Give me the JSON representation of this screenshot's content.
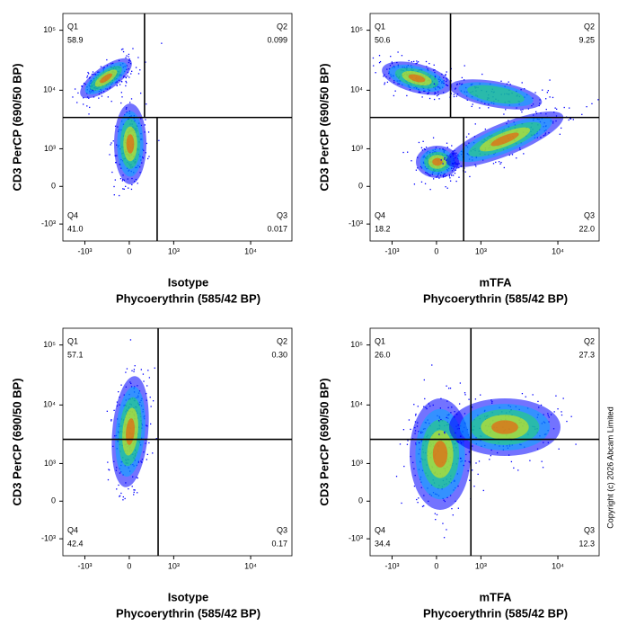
{
  "panels": [
    {
      "x_label_top": "Isotype",
      "x_label": "Phycoerythrin (585/42 BP)",
      "y_label": "CD3 PerCP (690/50 BP)",
      "xlim": [
        -2000,
        33000
      ],
      "ylim": [
        -2000,
        190000
      ],
      "xticks": [
        {
          "value": -1000,
          "label": "-10³"
        },
        0,
        {
          "value": 1000,
          "label": "10³"
        },
        {
          "value": 10000,
          "label": "10⁴"
        }
      ],
      "yticks": [
        {
          "value": -1000,
          "label": "-10³"
        },
        0,
        {
          "value": 1000,
          "label": "10³"
        },
        {
          "value": 10000,
          "label": "10⁴"
        },
        {
          "value": 100000,
          "label": "10⁵"
        }
      ],
      "gates": {
        "x_upper": 273,
        "x_lower": 537,
        "y": 3500
      },
      "quadrants": [
        {
          "name": "Q1",
          "value": 58.9
        },
        {
          "name": "Q2",
          "value": 0.099
        },
        {
          "name": "Q3",
          "value": 0.017
        },
        {
          "name": "Q4",
          "value": 41.0,
          "label": "41.0"
        }
      ]
    },
    {
      "x_label_top": "mTFA",
      "x_label": "Phycoerythrin (585/42 BP)",
      "y_label": "CD3 PerCP (690/50 BP)",
      "xlim": [
        -2000,
        33000
      ],
      "ylim": [
        -2000,
        190000
      ],
      "xticks": [
        {
          "value": -1000,
          "label": "-10³"
        },
        0,
        {
          "value": 1000,
          "label": "10³"
        },
        {
          "value": 10000,
          "label": "10⁴"
        }
      ],
      "yticks": [
        {
          "value": -1000,
          "label": "-10³"
        },
        0,
        {
          "value": 1000,
          "label": "10³"
        },
        {
          "value": 10000,
          "label": "10⁴"
        },
        {
          "value": 100000,
          "label": "10⁵"
        }
      ],
      "gates": {
        "x_upper": 250,
        "x_lower": 520,
        "y": 3500
      },
      "quadrants": [
        {
          "name": "Q1",
          "value": 50.6
        },
        {
          "name": "Q2",
          "value": 9.25
        },
        {
          "name": "Q3",
          "value": 22.0,
          "label": "22.0"
        },
        {
          "name": "Q4",
          "value": 18.2
        }
      ]
    },
    {
      "x_label_top": "Isotype",
      "x_label": "Phycoerythrin (585/42 BP)",
      "y_label": "CD3 PerCP (690/50 BP)",
      "xlim": [
        -2000,
        33000
      ],
      "ylim": [
        -2000,
        190000
      ],
      "xticks": [
        {
          "value": -1000,
          "label": "-10³"
        },
        0,
        {
          "value": 1000,
          "label": "10³"
        },
        {
          "value": 10000,
          "label": "10⁴"
        }
      ],
      "yticks": [
        {
          "value": -1000,
          "label": "-10³"
        },
        0,
        {
          "value": 1000,
          "label": "10³"
        },
        {
          "value": 10000,
          "label": "10⁴"
        },
        {
          "value": 100000,
          "label": "10⁵"
        }
      ],
      "gates": {
        "x": 560,
        "y": 2650
      },
      "quadrants": [
        {
          "name": "Q1",
          "value": 57.1
        },
        {
          "name": "Q2",
          "value": 0.3,
          "label": "0.30"
        },
        {
          "name": "Q3",
          "value": 0.17
        },
        {
          "name": "Q4",
          "value": 42.4
        }
      ]
    },
    {
      "x_label_top": "mTFA",
      "x_label": "Phycoerythrin (585/42 BP)",
      "y_label": "CD3 PerCP (690/50 BP)",
      "xlim": [
        -2000,
        33000
      ],
      "ylim": [
        -2000,
        190000
      ],
      "xticks": [
        {
          "value": -1000,
          "label": "-10³"
        },
        0,
        {
          "value": 1000,
          "label": "10³"
        },
        {
          "value": 10000,
          "label": "10⁴"
        }
      ],
      "yticks": [
        {
          "value": -1000,
          "label": "-10³"
        },
        0,
        {
          "value": 1000,
          "label": "10³"
        },
        {
          "value": 10000,
          "label": "10⁴"
        },
        {
          "value": 100000,
          "label": "10⁵"
        }
      ],
      "gates": {
        "x": 700,
        "y": 2650
      },
      "quadrants": [
        {
          "name": "Q1",
          "value": 26.0,
          "label": "26.0"
        },
        {
          "name": "Q2",
          "value": 27.3
        },
        {
          "name": "Q3",
          "value": 12.3
        },
        {
          "name": "Q4",
          "value": 34.4
        }
      ]
    }
  ],
  "copyright": "Copyright (c) 2026 Abcam Limited"
}
